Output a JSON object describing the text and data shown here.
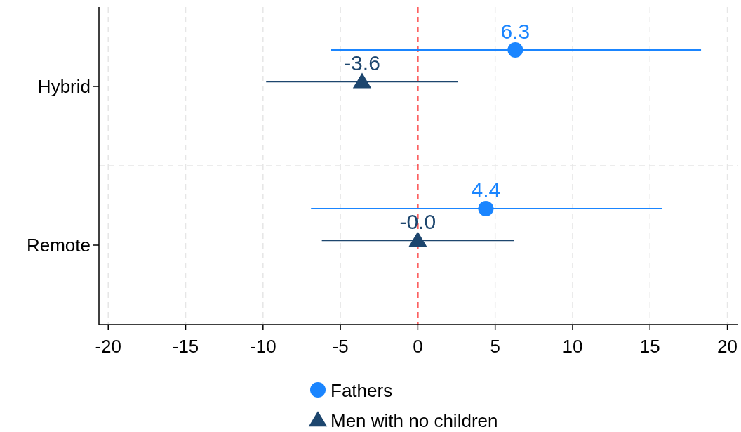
{
  "chart_data": {
    "type": "scatter",
    "orientation": "horizontal",
    "categories": [
      "Hybrid",
      "Remote"
    ],
    "xlim": [
      -20.6,
      20.7
    ],
    "xticks": [
      -20,
      -15,
      -10,
      -5,
      0,
      5,
      10,
      15,
      20
    ],
    "grid": true,
    "legend": "bottom",
    "ref_lines": [
      {
        "axis": "x",
        "value": 0,
        "color": "#ff0000",
        "line_style": "dashed"
      }
    ],
    "series": [
      {
        "name": "Fathers",
        "color": "#1a85ff",
        "marker": "circle",
        "values": [
          6.3,
          4.4
        ],
        "errors": [
          [
            -5.6,
            18.3
          ],
          [
            -6.9,
            15.8
          ]
        ],
        "value_labels": [
          "6.3",
          "4.4"
        ]
      },
      {
        "name": "Men with no children",
        "color": "#1d466e",
        "marker": "triangle",
        "values": [
          -3.6,
          0
        ],
        "errors": [
          [
            -9.8,
            2.6
          ],
          [
            -6.2,
            6.2
          ]
        ],
        "value_labels": [
          "-3.6",
          "-0.0"
        ]
      }
    ]
  }
}
